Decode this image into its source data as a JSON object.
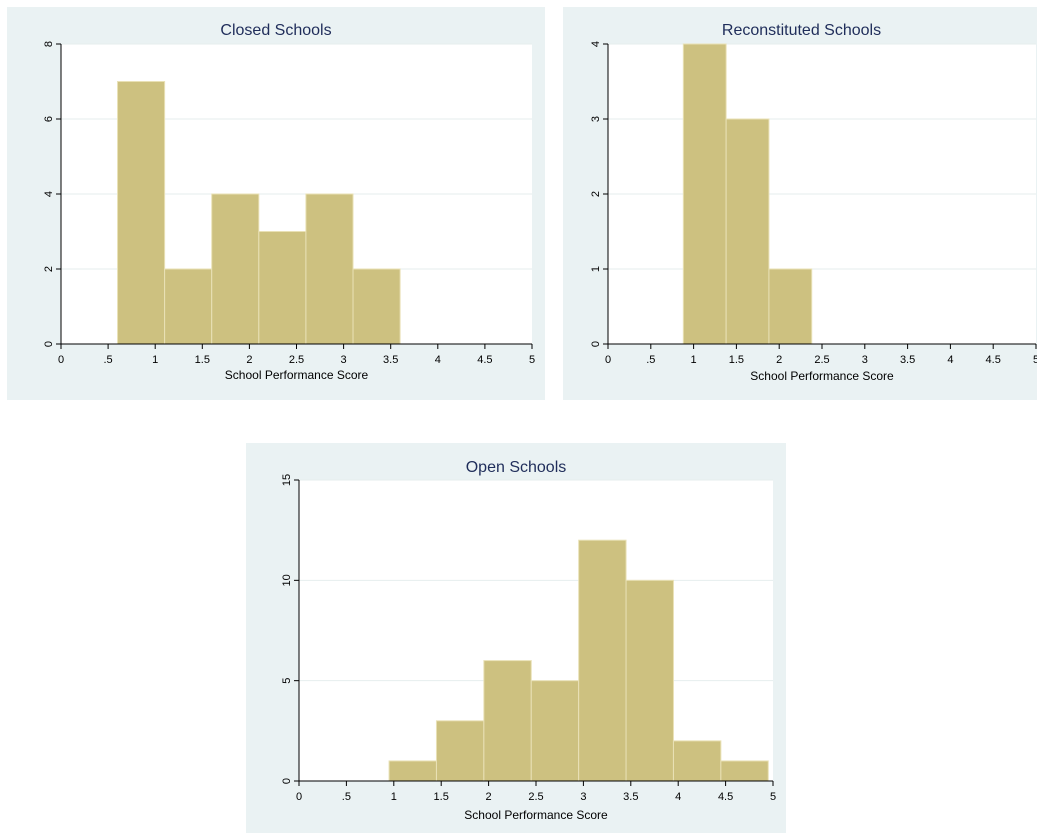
{
  "colors": {
    "panel_background": "#eaf2f3",
    "plot_background": "#ffffff",
    "bar_fill": "#cdc180",
    "bar_stroke": "#e9e1b6",
    "grid": "#e6eeee",
    "title_text": "#1f2d5a"
  },
  "chart_data": [
    {
      "type": "bar",
      "title": "Closed Schools",
      "xlabel": "School Performance Score",
      "ylabel": "",
      "xlim": [
        0,
        5
      ],
      "ylim": [
        0,
        8
      ],
      "x_ticks": [
        "0",
        ".5",
        "1",
        "1.5",
        "2",
        "2.5",
        "3",
        "3.5",
        "4",
        "4.5",
        "5"
      ],
      "y_ticks": [
        "0",
        "2",
        "4",
        "6",
        "8"
      ],
      "grid": true,
      "bars": [
        {
          "start": 0.6,
          "end": 1.1,
          "value": 7
        },
        {
          "start": 1.1,
          "end": 1.6,
          "value": 2
        },
        {
          "start": 1.6,
          "end": 2.1,
          "value": 4
        },
        {
          "start": 2.1,
          "end": 2.6,
          "value": 3
        },
        {
          "start": 2.6,
          "end": 3.1,
          "value": 4
        },
        {
          "start": 3.1,
          "end": 3.6,
          "value": 2
        }
      ]
    },
    {
      "type": "bar",
      "title": "Reconstituted Schools",
      "xlabel": "School Performance Score",
      "ylabel": "",
      "xlim": [
        0,
        5
      ],
      "ylim": [
        0,
        4
      ],
      "x_ticks": [
        "0",
        ".5",
        "1",
        "1.5",
        "2",
        "2.5",
        "3",
        "3.5",
        "4",
        "4.5",
        "5"
      ],
      "y_ticks": [
        "0",
        "1",
        "2",
        "3",
        "4"
      ],
      "grid": true,
      "bars": [
        {
          "start": 0.88,
          "end": 1.38,
          "value": 4
        },
        {
          "start": 1.38,
          "end": 1.88,
          "value": 3
        },
        {
          "start": 1.88,
          "end": 2.38,
          "value": 1
        }
      ]
    },
    {
      "type": "bar",
      "title": "Open Schools",
      "xlabel": "School Performance Score",
      "ylabel": "",
      "xlim": [
        0,
        5
      ],
      "ylim": [
        0,
        15
      ],
      "x_ticks": [
        "0",
        ".5",
        "1",
        "1.5",
        "2",
        "2.5",
        "3",
        "3.5",
        "4",
        "4.5",
        "5"
      ],
      "y_ticks": [
        "0",
        "5",
        "10",
        "15"
      ],
      "grid": true,
      "bars": [
        {
          "start": 0.95,
          "end": 1.45,
          "value": 1
        },
        {
          "start": 1.45,
          "end": 1.95,
          "value": 3
        },
        {
          "start": 1.95,
          "end": 2.45,
          "value": 6
        },
        {
          "start": 2.45,
          "end": 2.95,
          "value": 5
        },
        {
          "start": 2.95,
          "end": 3.45,
          "value": 12
        },
        {
          "start": 3.45,
          "end": 3.95,
          "value": 10
        },
        {
          "start": 3.95,
          "end": 4.45,
          "value": 2
        },
        {
          "start": 4.45,
          "end": 4.95,
          "value": 1
        }
      ]
    }
  ]
}
